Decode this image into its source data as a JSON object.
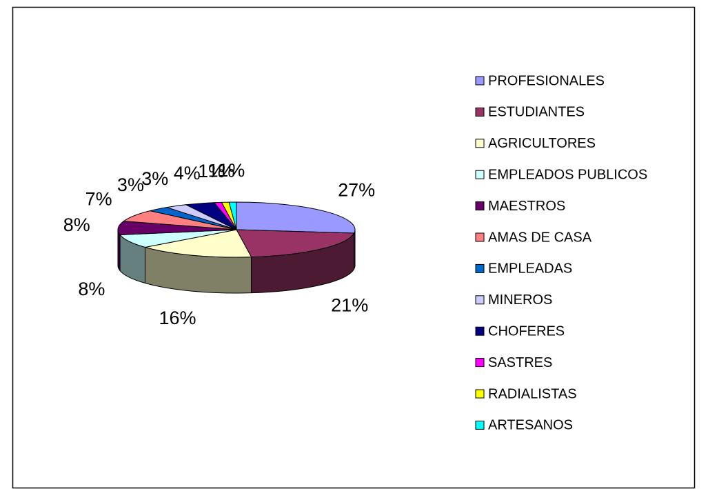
{
  "chart_data": {
    "type": "pie",
    "categories": [
      "PROFESIONALES",
      "ESTUDIANTES",
      "AGRICULTORES",
      "EMPLEADOS PUBLICOS",
      "MAESTROS",
      "AMAS DE CASA",
      "EMPLEADAS",
      "MINEROS",
      "CHOFERES",
      "SASTRES",
      "RADIALISTAS",
      "ARTESANOS"
    ],
    "values": [
      27,
      21,
      16,
      8,
      8,
      7,
      3,
      3,
      4,
      1,
      1,
      1
    ],
    "value_labels": [
      "27%",
      "21%",
      "16%",
      "8%",
      "8%",
      "7%",
      "3%",
      "3%",
      "4%",
      "1%",
      "1%",
      "1%"
    ],
    "colors": [
      "#9999ff",
      "#993366",
      "#ffffcc",
      "#ccffff",
      "#660066",
      "#ff8080",
      "#0066cc",
      "#ccccff",
      "#000080",
      "#ff00ff",
      "#ffff00",
      "#00ffff"
    ],
    "legend": "right"
  }
}
